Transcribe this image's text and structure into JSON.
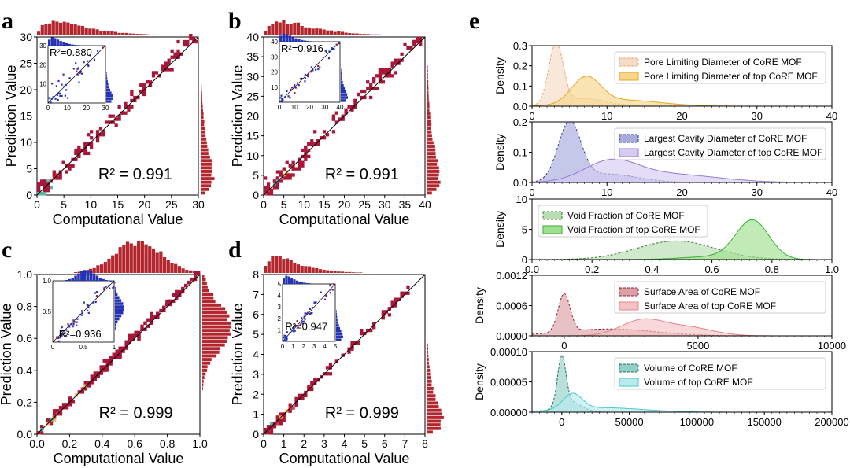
{
  "colors": {
    "heat_main": "#a8163a",
    "heat_mid": "#d0384a",
    "heat_hot": "#f6c05a",
    "heat_cool": "#5fb7a6",
    "hist_red": "#b3262d",
    "hist_blue": "#2432b4",
    "diag": "#000000"
  },
  "chart_data": [
    {
      "panel": "a",
      "type": "scatter",
      "xlabel": "Computational Value",
      "ylabel": "Prediction Value",
      "xlim": [
        0,
        30
      ],
      "ylim": [
        0,
        30
      ],
      "xticks": [
        0,
        5,
        10,
        15,
        20,
        25,
        30
      ],
      "yticks": [
        0,
        5,
        10,
        15,
        20,
        25,
        30
      ],
      "annotation": "R² = 0.991",
      "r2": 0.991,
      "inset": {
        "xlim": [
          0,
          30
        ],
        "ylim": [
          0,
          30
        ],
        "xticks": [
          0,
          10,
          20,
          30
        ],
        "yticks": [
          10,
          20,
          30
        ],
        "annotation": "R²=0.880",
        "r2": 0.88
      }
    },
    {
      "panel": "b",
      "type": "scatter",
      "xlabel": "Computational Value",
      "ylabel": "Prediction Value",
      "xlim": [
        0,
        40
      ],
      "ylim": [
        0,
        40
      ],
      "xticks": [
        0,
        5,
        10,
        15,
        20,
        25,
        30,
        35,
        40
      ],
      "yticks": [
        0,
        5,
        10,
        15,
        20,
        25,
        30,
        35,
        40
      ],
      "annotation": "R² = 0.991",
      "r2": 0.991,
      "inset": {
        "xlim": [
          0,
          40
        ],
        "ylim": [
          0,
          40
        ],
        "xticks": [
          0,
          10,
          20,
          30,
          40
        ],
        "yticks": [
          10,
          20,
          30,
          40
        ],
        "annotation": "R²=0.916",
        "r2": 0.916
      }
    },
    {
      "panel": "c",
      "type": "scatter",
      "xlabel": "Computational Value",
      "ylabel": "Prediction Value",
      "xlim": [
        0,
        1
      ],
      "ylim": [
        0,
        1
      ],
      "xticks": [
        "0.0",
        "0.2",
        "0.4",
        "0.6",
        "0.8",
        "1.0"
      ],
      "yticks": [
        "0.0",
        "0.2",
        "0.4",
        "0.6",
        "0.8",
        "1.0"
      ],
      "annotation": "R² = 0.999",
      "r2": 0.999,
      "inset": {
        "xlim": [
          0,
          1
        ],
        "ylim": [
          0,
          1
        ],
        "xticks": [
          "0",
          "0.5",
          "1"
        ],
        "yticks": [
          "0.5",
          "1.0"
        ],
        "annotation": "R²=0.936",
        "r2": 0.936
      }
    },
    {
      "panel": "d",
      "type": "scatter",
      "xlabel": "Computational Value",
      "ylabel": "Prediction Value",
      "xlim": [
        0,
        8
      ],
      "ylim": [
        0,
        8
      ],
      "xticks": [
        0,
        1,
        2,
        3,
        4,
        5,
        6,
        7,
        8
      ],
      "yticks": [
        0,
        1,
        2,
        3,
        4,
        5,
        6,
        7,
        8
      ],
      "annotation": "R² = 0.999",
      "r2": 0.999,
      "inset": {
        "xlim": [
          0,
          5
        ],
        "ylim": [
          0,
          5
        ],
        "xticks": [
          0,
          1,
          2,
          3,
          4,
          5
        ],
        "yticks": [
          1,
          2,
          3,
          4,
          5
        ],
        "annotation": "R²=0.947",
        "r2": 0.947
      }
    },
    {
      "panel": "e",
      "type": "area",
      "ylabel": "Density",
      "rows": [
        {
          "xlim": [
            0,
            40
          ],
          "xticks": [
            "0",
            "10",
            "20",
            "30",
            "40"
          ],
          "ylim": [
            0,
            0.3
          ],
          "yticks": [
            "0.0",
            "0.1",
            "0.2",
            "0.3"
          ],
          "series": [
            {
              "name": "Pore Limiting Diameter of CoRE MOF",
              "color": "#e9a870",
              "fill": "#f6dcc6",
              "dashed": true,
              "components": [
                {
                  "weight": 0.72,
                  "mean": 3.2,
                  "sd": 0.95
                },
                {
                  "weight": 0.28,
                  "mean": 7.0,
                  "sd": 3.0
                }
              ]
            },
            {
              "name": "Pore Limiting Diameter of top CoRE MOF",
              "color": "#e4a521",
              "fill": "#f7d58a",
              "dashed": false,
              "components": [
                {
                  "weight": 0.62,
                  "mean": 7.2,
                  "sd": 1.9
                },
                {
                  "weight": 0.38,
                  "mean": 12.0,
                  "sd": 5.0
                }
              ]
            }
          ]
        },
        {
          "xlim": [
            0,
            40
          ],
          "xticks": [
            "0",
            "10",
            "20",
            "30",
            "40"
          ],
          "ylim": [
            0,
            0.2
          ],
          "yticks": [
            "0.0",
            "0.1",
            "0.2"
          ],
          "series": [
            {
              "name": "Largest Cavity Diameter of CoRE MOF",
              "color": "#2b2f87",
              "fill": "#a8aade",
              "dashed": true,
              "components": [
                {
                  "weight": 0.72,
                  "mean": 5.0,
                  "sd": 1.5
                },
                {
                  "weight": 0.28,
                  "mean": 10.0,
                  "sd": 4.0
                }
              ]
            },
            {
              "name": "Largest Cavity Diameter of top CoRE MOF",
              "color": "#8f7bd4",
              "fill": "#d6cbf3",
              "dashed": false,
              "components": [
                {
                  "weight": 0.55,
                  "mean": 10.5,
                  "sd": 3.5
                },
                {
                  "weight": 0.45,
                  "mean": 18.0,
                  "sd": 6.5
                }
              ]
            }
          ]
        },
        {
          "xlim": [
            0,
            1
          ],
          "xticks": [
            "0.0",
            "0.2",
            "0.4",
            "0.6",
            "0.8",
            "1.0"
          ],
          "ylim": [
            0,
            10
          ],
          "yticks": [
            "0",
            "5",
            "10"
          ],
          "series": [
            {
              "name": "Void Fraction of CoRE MOF",
              "color": "#3a7a34",
              "fill": "#b7ddb0",
              "dashed": true,
              "components": [
                {
                  "weight": 1.0,
                  "mean": 0.48,
                  "sd": 0.13
                }
              ]
            },
            {
              "name": "Void Fraction of top CoRE MOF",
              "color": "#3aad38",
              "fill": "#9fe08f",
              "dashed": false,
              "components": [
                {
                  "weight": 0.88,
                  "mean": 0.735,
                  "sd": 0.055
                },
                {
                  "weight": 0.12,
                  "mean": 0.6,
                  "sd": 0.1
                }
              ]
            }
          ]
        },
        {
          "xlim": [
            -1200,
            10000
          ],
          "xticks": [
            "0",
            "5000",
            "10000"
          ],
          "ylim": [
            0,
            0.0012
          ],
          "yticks": [
            "0.0000",
            "0.0006",
            "0.0012"
          ],
          "series": [
            {
              "name": "Surface Area of CoRE MOF",
              "color": "#8b1e2e",
              "fill": "#dba0a6",
              "dashed": true,
              "components": [
                {
                  "weight": 0.42,
                  "mean": 0,
                  "sd": 220
                },
                {
                  "weight": 0.58,
                  "mean": 1700,
                  "sd": 1700
                }
              ]
            },
            {
              "name": "Surface Area of top CoRE MOF",
              "color": "#e6848a",
              "fill": "#f6c3c5",
              "dashed": false,
              "components": [
                {
                  "weight": 0.6,
                  "mean": 2900,
                  "sd": 800
                },
                {
                  "weight": 0.4,
                  "mean": 4600,
                  "sd": 950
                }
              ]
            }
          ]
        },
        {
          "xlim": [
            -22000,
            200000
          ],
          "xticks": [
            "0",
            "50000",
            "100000",
            "150000",
            "200000"
          ],
          "ylim": [
            0,
            0.0001
          ],
          "yticks": [
            "0.00000",
            "0.00005",
            "0.00010"
          ],
          "series": [
            {
              "name": "Volume of CoRE MOF",
              "color": "#1f6f68",
              "fill": "#93cfc8",
              "dashed": true,
              "components": [
                {
                  "weight": 0.6,
                  "mean": 0,
                  "sd": 3000
                },
                {
                  "weight": 0.4,
                  "mean": 5000,
                  "sd": 9000
                }
              ]
            },
            {
              "name": "Volume of top CoRE MOF",
              "color": "#48c8cf",
              "fill": "#b8ebee",
              "dashed": false,
              "components": [
                {
                  "weight": 0.45,
                  "mean": 8000,
                  "sd": 7000
                },
                {
                  "weight": 0.55,
                  "mean": 30000,
                  "sd": 30000
                }
              ]
            }
          ]
        }
      ]
    }
  ],
  "panel_labels": [
    "a",
    "b",
    "c",
    "d",
    "e"
  ]
}
